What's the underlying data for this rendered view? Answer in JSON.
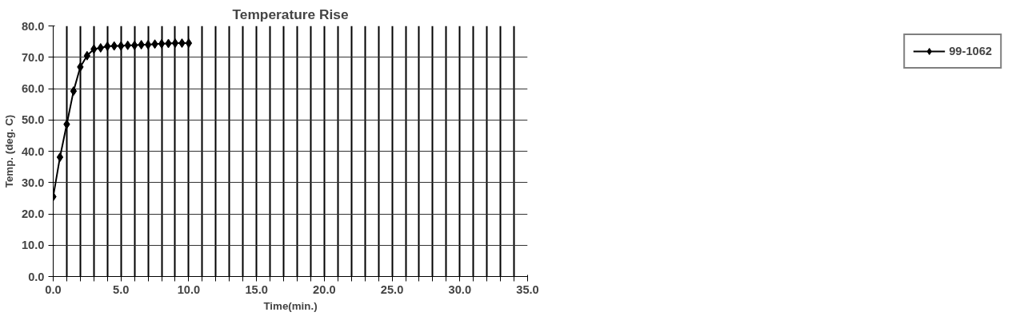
{
  "chart_data": {
    "type": "line",
    "title": "Temperature Rise",
    "xlabel": "Time(min.)",
    "ylabel": "Temp. (deg. C)",
    "x": [
      0,
      0.5,
      1,
      1.5,
      2,
      2.5,
      3,
      3.5,
      4,
      4.5,
      5,
      5.5,
      6,
      6.5,
      7,
      7.5,
      8,
      8.5,
      9,
      9.5,
      10
    ],
    "series": [
      {
        "name": "99-1062",
        "color": "#000000",
        "values": [
          25.5,
          38.1,
          48.6,
          59.2,
          66.9,
          70.5,
          72.6,
          73.0,
          73.5,
          73.6,
          73.6,
          73.8,
          73.8,
          74.0,
          74.0,
          74.2,
          74.3,
          74.4,
          74.5,
          74.5,
          74.5
        ]
      }
    ],
    "xlim": [
      0,
      35
    ],
    "ylim": [
      0,
      80
    ],
    "xticks": [
      {
        "value": 0,
        "label": "0.0"
      },
      {
        "value": 1,
        "label": null
      },
      {
        "value": 2,
        "label": null
      },
      {
        "value": 3,
        "label": null
      },
      {
        "value": 4,
        "label": null
      },
      {
        "value": 5,
        "label": "5.0"
      },
      {
        "value": 6,
        "label": null
      },
      {
        "value": 7,
        "label": null
      },
      {
        "value": 8,
        "label": null
      },
      {
        "value": 9,
        "label": null
      },
      {
        "value": 10,
        "label": "10.0"
      },
      {
        "value": 11,
        "label": null
      },
      {
        "value": 12,
        "label": null
      },
      {
        "value": 13,
        "label": null
      },
      {
        "value": 14,
        "label": null
      },
      {
        "value": 15,
        "label": "15.0"
      },
      {
        "value": 16,
        "label": null
      },
      {
        "value": 17,
        "label": null
      },
      {
        "value": 18,
        "label": null
      },
      {
        "value": 19,
        "label": null
      },
      {
        "value": 20,
        "label": "20.0"
      },
      {
        "value": 21,
        "label": null
      },
      {
        "value": 22,
        "label": null
      },
      {
        "value": 23,
        "label": null
      },
      {
        "value": 24,
        "label": null
      },
      {
        "value": 25,
        "label": "25.0"
      },
      {
        "value": 26,
        "label": null
      },
      {
        "value": 27,
        "label": null
      },
      {
        "value": 28,
        "label": null
      },
      {
        "value": 29,
        "label": null
      },
      {
        "value": 30,
        "label": "30.0"
      },
      {
        "value": 31,
        "label": null
      },
      {
        "value": 32,
        "label": null
      },
      {
        "value": 33,
        "label": null
      },
      {
        "value": 34,
        "label": null
      },
      {
        "value": 35,
        "label": "35.0"
      }
    ],
    "yticks": [
      {
        "value": 0,
        "label": "0.0"
      },
      {
        "value": 10,
        "label": "10.0"
      },
      {
        "value": 20,
        "label": "20.0"
      },
      {
        "value": 30,
        "label": "30.0"
      },
      {
        "value": 40,
        "label": "40.0"
      },
      {
        "value": 50,
        "label": "50.0"
      },
      {
        "value": 60,
        "label": "60.0"
      },
      {
        "value": 70,
        "label": "70.0"
      },
      {
        "value": 80,
        "label": "80.0"
      }
    ],
    "grid": true,
    "legend": "right",
    "marker": "diamond",
    "line_style": "solid"
  }
}
